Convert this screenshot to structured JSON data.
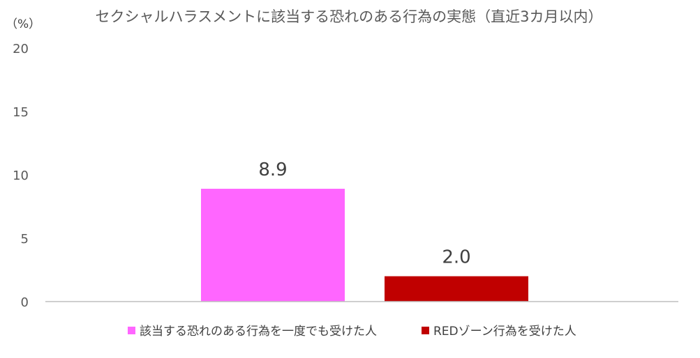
{
  "chart_data": {
    "type": "bar",
    "title": "セクシャルハラスメントに該当する恐れのある行為の実態（直近3カ月以内）",
    "unit_label": "（%）",
    "ylim": [
      0,
      20
    ],
    "yticks": [
      0,
      5,
      10,
      15,
      20
    ],
    "grid": false,
    "legend": "bottom",
    "series": [
      {
        "name": "該当する恐れのある行為を一度でも受けた人",
        "value": 8.9,
        "label": "8.9",
        "color": "#FF66FF"
      },
      {
        "name": "REDゾーン行為を受けた人",
        "value": 2.0,
        "label": "2.0",
        "color": "#C00000"
      }
    ]
  }
}
